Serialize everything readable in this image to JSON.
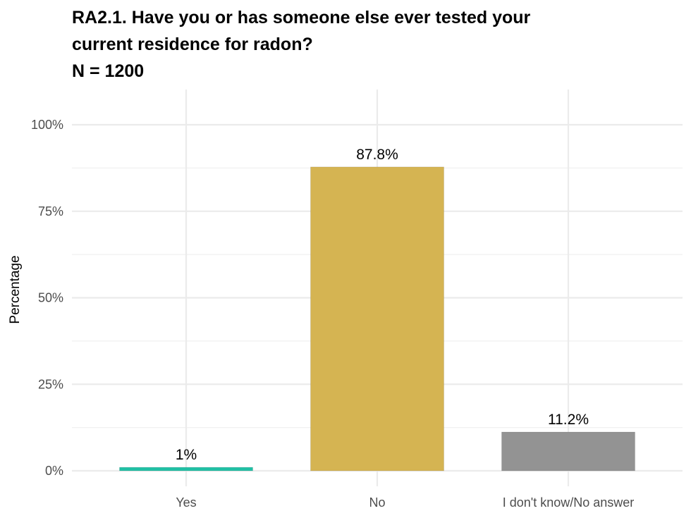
{
  "title_lines": [
    "RA2.1. Have you or has someone else ever tested your",
    "current residence for radon?",
    "N = 1200"
  ],
  "chart_data": {
    "type": "bar",
    "title": "RA2.1. Have you or has someone else ever tested your current residence for radon?",
    "subtitle": "N = 1200",
    "xlabel": "",
    "ylabel": "Percentage",
    "categories": [
      "Yes",
      "No",
      "I don't know/No answer"
    ],
    "values": [
      1.0,
      87.8,
      11.2
    ],
    "data_labels": [
      "1%",
      "87.8%",
      "11.2%"
    ],
    "colors": [
      "#21c0a5",
      "#d5b452",
      "#939393"
    ],
    "ylim": [
      0,
      110
    ],
    "yticks": [
      0,
      25,
      50,
      75,
      100
    ],
    "ytick_labels": [
      "0%",
      "25%",
      "50%",
      "75%",
      "100%"
    ],
    "grid": true,
    "legend": "none"
  }
}
